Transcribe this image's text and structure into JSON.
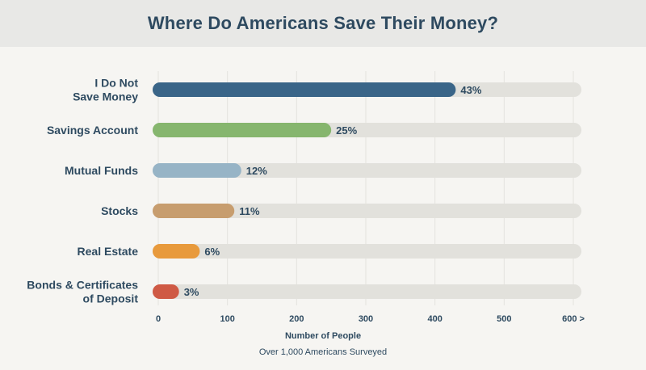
{
  "chart_data": {
    "type": "bar",
    "orientation": "horizontal",
    "title": "Where Do Americans Save Their Money?",
    "xlabel": "Number of People",
    "subtitle": "Over 1,000 Americans Surveyed",
    "xlim": [
      0,
      600
    ],
    "xticks": [
      "0",
      "100",
      "200",
      "300",
      "400",
      "500",
      "600 >"
    ],
    "xtick_values": [
      0,
      100,
      200,
      300,
      400,
      500,
      600
    ],
    "categories": [
      [
        "I Do Not",
        "Save Money"
      ],
      [
        "Savings Account"
      ],
      [
        "Mutual Funds"
      ],
      [
        "Stocks"
      ],
      [
        "Real Estate"
      ],
      [
        "Bonds & Certificates",
        "of Deposit"
      ]
    ],
    "values": [
      430,
      250,
      120,
      110,
      60,
      30
    ],
    "value_labels": [
      "43%",
      "25%",
      "12%",
      "11%",
      "6%",
      "3%"
    ],
    "colors": [
      "#3a6588",
      "#86b66e",
      "#97b4c6",
      "#c79d6e",
      "#e89a3c",
      "#cf5a45"
    ],
    "track_color": "#e2e1dc",
    "grid": true
  }
}
